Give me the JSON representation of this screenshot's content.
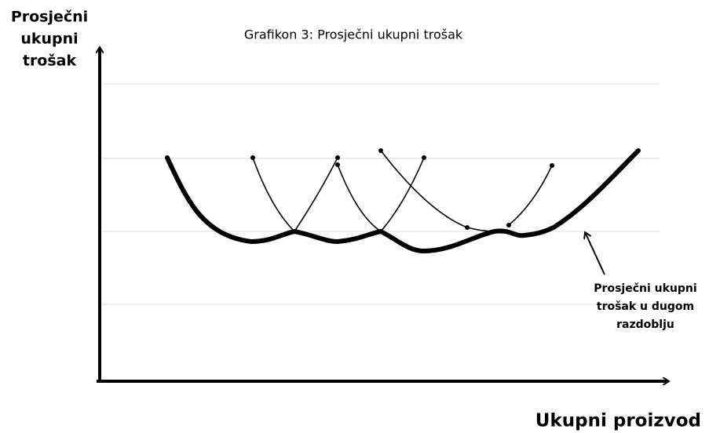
{
  "title": "Grafikon 3: Prosječni ukupni trošak",
  "y_axis_label": [
    "Prosječni",
    "ukupni",
    "trošak"
  ],
  "x_axis_label": "Ukupni proizvod",
  "annotation": [
    "Prosječni ukupni",
    "trošak u dugom",
    "razdoblju"
  ]
}
